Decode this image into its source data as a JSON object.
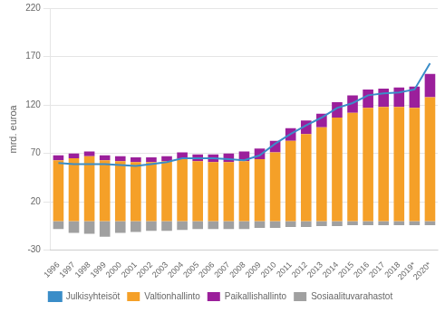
{
  "chart_data": {
    "type": "bar",
    "ylabel": "mrd. euroa",
    "categories": [
      "1996",
      "1997",
      "1998",
      "1999",
      "2000",
      "2001",
      "2002",
      "2003",
      "2004",
      "2005",
      "2006",
      "2007",
      "2008",
      "2009",
      "2010",
      "2011",
      "2012",
      "2013",
      "2014",
      "2015",
      "2016",
      "2017",
      "2018",
      "2019*",
      "2020*"
    ],
    "series": [
      {
        "name": "Valtionhallinto",
        "type": "bar",
        "color": "#F5A028",
        "values": [
          63,
          65,
          67,
          63,
          62,
          61,
          61,
          62,
          65,
          62,
          61,
          61,
          62,
          64,
          71,
          83,
          90,
          97,
          107,
          112,
          117,
          118,
          118,
          117,
          128
        ]
      },
      {
        "name": "Paikallishallinto",
        "type": "bar",
        "color": "#9B1F9B",
        "values": [
          5,
          5,
          5,
          5,
          5,
          5,
          5,
          5,
          6,
          7,
          8,
          9,
          10,
          11,
          12,
          13,
          14,
          14,
          16,
          18,
          19,
          19,
          20,
          22,
          24
        ]
      },
      {
        "name": "Sosiaalituvarahastot",
        "type": "bar",
        "color": "#A0A0A0",
        "values": [
          -8,
          -12,
          -13,
          -16,
          -12,
          -11,
          -10,
          -10,
          -9,
          -8,
          -8,
          -8,
          -8,
          -7,
          -7,
          -6,
          -6,
          -5,
          -5,
          -4,
          -4,
          -4,
          -4,
          -4,
          -4
        ]
      },
      {
        "name": "Julkisyhteisöt",
        "type": "line",
        "color": "#3A8DC8",
        "values": [
          60,
          59,
          59,
          59,
          58,
          57,
          59,
          61,
          65,
          65,
          65,
          64,
          63,
          68,
          80,
          90,
          99,
          107,
          117,
          122,
          130,
          132,
          133,
          136,
          163
        ]
      }
    ],
    "stacked": true,
    "ylim": [
      -30,
      220
    ],
    "yticks": [
      -30,
      20,
      70,
      120,
      170,
      220
    ],
    "grid": true,
    "legend": "bottom"
  }
}
